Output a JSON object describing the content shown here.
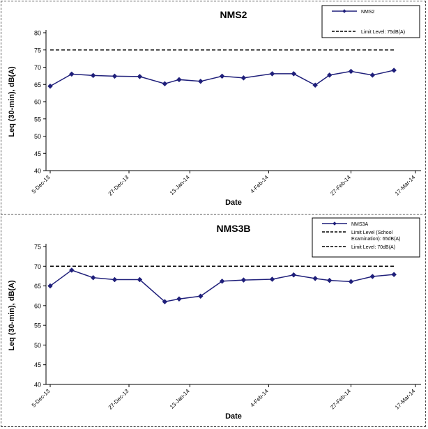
{
  "chart_data": [
    {
      "type": "line",
      "title": "NMS2",
      "xlabel": "Date",
      "ylabel": "Leq (30-min), dB(A)",
      "ylim": [
        40,
        80
      ],
      "yticks": [
        40,
        45,
        50,
        55,
        60,
        65,
        70,
        75,
        80
      ],
      "x": [
        "5-Dec-13",
        "11-Dec-13",
        "17-Dec-13",
        "23-Dec-13",
        "30-Dec-13",
        "6-Jan-14",
        "10-Jan-14",
        "16-Jan-14",
        "22-Jan-14",
        "28-Jan-14",
        "5-Feb-14",
        "11-Feb-14",
        "17-Feb-14",
        "21-Feb-14",
        "27-Feb-14",
        "5-Mar-14",
        "11-Mar-14"
      ],
      "xtick_labels": [
        "5-Dec-13",
        "27-Dec-13",
        "13-Jan-14",
        "4-Feb-14",
        "27-Feb-14",
        "17-Mar-14"
      ],
      "series": [
        {
          "name": "NMS2",
          "values": [
            64.5,
            68.0,
            67.6,
            67.4,
            67.3,
            65.2,
            66.4,
            65.9,
            67.4,
            66.9,
            68.1,
            68.1,
            64.8,
            67.7,
            68.8,
            67.7,
            69.1
          ],
          "color": "#1f1f7a",
          "style": "solid-diamond"
        },
        {
          "name": "Limit Level: 75dB(A)",
          "values": [
            75,
            75,
            75,
            75,
            75,
            75,
            75,
            75,
            75,
            75,
            75,
            75,
            75,
            75,
            75,
            75,
            75
          ],
          "color": "#000000",
          "style": "dashed"
        }
      ],
      "legend": {
        "placement": "top-right",
        "entries": [
          "NMS2",
          "Limit Level: 75dB(A)"
        ]
      }
    },
    {
      "type": "line",
      "title": "NMS3B",
      "xlabel": "Date",
      "ylabel": "Leq (30-min), dB(A)",
      "ylim": [
        40,
        75
      ],
      "yticks": [
        40,
        45,
        50,
        55,
        60,
        65,
        70,
        75
      ],
      "x": [
        "5-Dec-13",
        "11-Dec-13",
        "17-Dec-13",
        "23-Dec-13",
        "30-Dec-13",
        "6-Jan-14",
        "10-Jan-14",
        "16-Jan-14",
        "22-Jan-14",
        "28-Jan-14",
        "5-Feb-14",
        "11-Feb-14",
        "17-Feb-14",
        "21-Feb-14",
        "27-Feb-14",
        "5-Mar-14",
        "11-Mar-14"
      ],
      "xtick_labels": [
        "5-Dec-13",
        "27-Dec-13",
        "13-Jan-14",
        "4-Feb-14",
        "27-Feb-14",
        "17-Mar-14"
      ],
      "series": [
        {
          "name": "NMS3A",
          "values": [
            65.0,
            69.0,
            67.1,
            66.6,
            66.6,
            61.0,
            61.7,
            62.4,
            66.2,
            66.5,
            66.7,
            67.8,
            66.9,
            66.4,
            66.1,
            67.4,
            67.9
          ],
          "color": "#1f1f7a",
          "style": "solid-diamond"
        },
        {
          "name": "Limit Level: 70dB(A)",
          "values": [
            70,
            70,
            70,
            70,
            70,
            70,
            70,
            70,
            70,
            70,
            70,
            70,
            70,
            70,
            70,
            70,
            70
          ],
          "color": "#000000",
          "style": "dashed"
        }
      ],
      "legend": {
        "placement": "top-right",
        "entries": [
          "NMS3A",
          "Limit Level (School Examination): 65dB(A)",
          "Limit Level: 70dB(A)"
        ],
        "entry_lines": [
          [
            "NMS3A"
          ],
          [
            "Limit Level (School",
            "Examination): 65dB(A)"
          ],
          [
            "Limit Level: 70dB(A)"
          ]
        ]
      }
    }
  ]
}
